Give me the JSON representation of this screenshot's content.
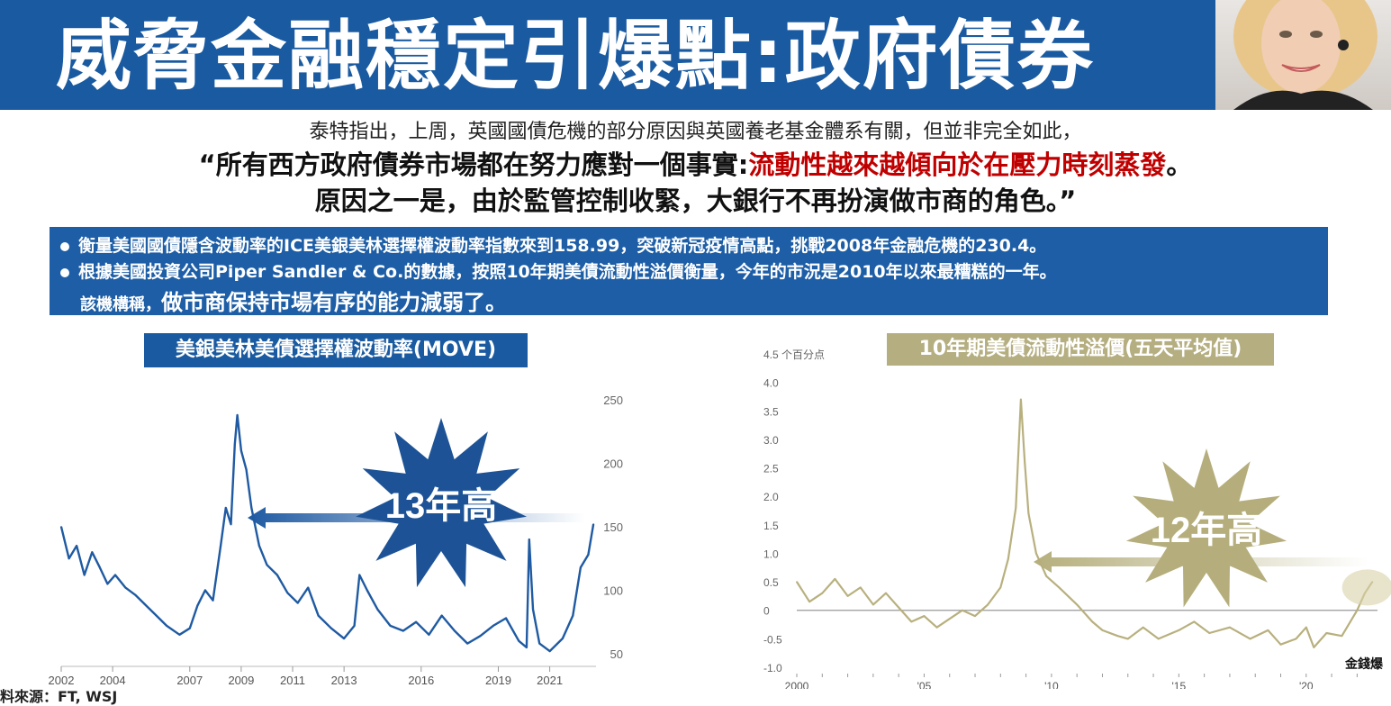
{
  "header": {
    "title": "威脅金融穩定引爆點:政府債券"
  },
  "quote": {
    "line1": "泰特指出，上周，英國國債危機的部分原因與英國養老基金體系有關，但並非完全如此，",
    "line2_prefix": "“所有西方政府債券市場都在努力應對一個事實:",
    "line2_highlight": "流動性越來越傾向於在壓力時刻蒸發",
    "line2_suffix": "。",
    "line3": "原因之一是，由於監管控制收緊，大銀行不再扮演做市商的角色。”"
  },
  "bullets": {
    "item1": "衡量美國國債隱含波動率的ICE美銀美林選擇權波動率指數來到158.99，突破新冠疫情高點，挑戰2008年金融危機的230.4。",
    "item2": "根據美國投資公司Piper Sandler & Co.的數據，按照10年期美債流動性溢價衡量，今年的市況是2010年以來最糟糕的一年。",
    "item2_cont_small": "該機構稱，",
    "item2_cont_big": "做市商保持市場有序的能力減弱了。"
  },
  "colors": {
    "header_bg": "#1a5aa0",
    "move_line": "#1f5aa2",
    "liq_line": "#b8b07e",
    "highlight_red": "#c00000",
    "burst_blue": "#1d5396",
    "burst_olive": "#b5ae7c"
  },
  "source_text": "料來源：FT, WSJ",
  "brand_mark": "金錢爆",
  "chart_data": [
    {
      "type": "line",
      "title": "美銀美林美債選擇權波動率(MOVE)",
      "callout": "13年高",
      "x_tick_labels": [
        "2002",
        "2004",
        "2007",
        "2009",
        "2011",
        "2013",
        "2016",
        "2019",
        "2021"
      ],
      "x_tick_years": [
        2002,
        2004,
        2007,
        2009,
        2011,
        2013,
        2016,
        2019,
        2021
      ],
      "y_tick_labels": [
        "250",
        "200",
        "150",
        "100",
        "50"
      ],
      "ylim": [
        40,
        260
      ],
      "xlim": [
        2002.0,
        2022.8
      ],
      "axis_side": "right",
      "series": [
        {
          "x": [
            2002.0,
            2002.3,
            2002.6,
            2002.9,
            2003.2,
            2003.5,
            2003.8,
            2004.1,
            2004.5,
            2004.9,
            2005.3,
            2005.7,
            2006.1,
            2006.6,
            2007.0,
            2007.3,
            2007.6,
            2007.9,
            2008.2,
            2008.4,
            2008.6,
            2008.75,
            2008.85,
            2009.0,
            2009.2,
            2009.4,
            2009.7,
            2010.0,
            2010.4,
            2010.8,
            2011.2,
            2011.6,
            2012.0,
            2012.5,
            2013.0,
            2013.4,
            2013.6,
            2013.9,
            2014.3,
            2014.8,
            2015.3,
            2015.8,
            2016.3,
            2016.8,
            2017.3,
            2017.8,
            2018.3,
            2018.8,
            2019.3,
            2019.8,
            2020.1,
            2020.2,
            2020.35,
            2020.6,
            2021.0,
            2021.5,
            2021.9,
            2022.2,
            2022.5,
            2022.7
          ],
          "y": [
            150,
            125,
            135,
            112,
            130,
            118,
            105,
            112,
            102,
            96,
            88,
            80,
            72,
            65,
            70,
            88,
            100,
            92,
            135,
            165,
            152,
            215,
            238,
            210,
            195,
            165,
            135,
            120,
            112,
            98,
            90,
            102,
            80,
            70,
            62,
            72,
            112,
            100,
            85,
            72,
            68,
            75,
            65,
            80,
            68,
            58,
            64,
            72,
            78,
            60,
            55,
            140,
            85,
            58,
            52,
            62,
            80,
            118,
            128,
            152
          ]
        }
      ]
    },
    {
      "type": "line",
      "title": "10年期美債流動性溢價(五天平均值)",
      "callout": "12年高",
      "y_axis_unit": "4.5 个百分点",
      "y_tick_labels": [
        "4.0",
        "3.5",
        "3.0",
        "2.5",
        "2.0",
        "1.5",
        "1.0",
        "0.5",
        "0",
        "-0.5",
        "-1.0"
      ],
      "x_tick_labels": [
        "2000",
        "'05",
        "'10",
        "'15",
        "'20"
      ],
      "x_tick_years": [
        2000,
        2005,
        2010,
        2015,
        2020
      ],
      "ylim": [
        -1.0,
        4.5
      ],
      "xlim": [
        2000,
        2022.8
      ],
      "axis_side": "left",
      "series": [
        {
          "x": [
            2000,
            2000.5,
            2001,
            2001.5,
            2002,
            2002.5,
            2003,
            2003.5,
            2004,
            2004.5,
            2005,
            2005.5,
            2006,
            2006.5,
            2007,
            2007.5,
            2008,
            2008.3,
            2008.6,
            2008.8,
            2008.95,
            2009.1,
            2009.4,
            2009.8,
            2010.3,
            2011,
            2011.6,
            2012,
            2012.6,
            2013,
            2013.6,
            2014.2,
            2015,
            2015.6,
            2016.2,
            2017,
            2017.8,
            2018.5,
            2019,
            2019.6,
            2020,
            2020.3,
            2020.8,
            2021.4,
            2022,
            2022.3,
            2022.6
          ],
          "y": [
            0.5,
            0.15,
            0.3,
            0.55,
            0.25,
            0.4,
            0.1,
            0.3,
            0.05,
            -0.2,
            -0.1,
            -0.3,
            -0.15,
            0.0,
            -0.1,
            0.1,
            0.4,
            0.9,
            1.8,
            3.7,
            2.6,
            1.7,
            1.0,
            0.6,
            0.4,
            0.1,
            -0.2,
            -0.35,
            -0.45,
            -0.5,
            -0.3,
            -0.5,
            -0.35,
            -0.2,
            -0.4,
            -0.3,
            -0.5,
            -0.35,
            -0.6,
            -0.5,
            -0.3,
            -0.65,
            -0.4,
            -0.45,
            0.0,
            0.3,
            0.5
          ]
        }
      ]
    }
  ]
}
